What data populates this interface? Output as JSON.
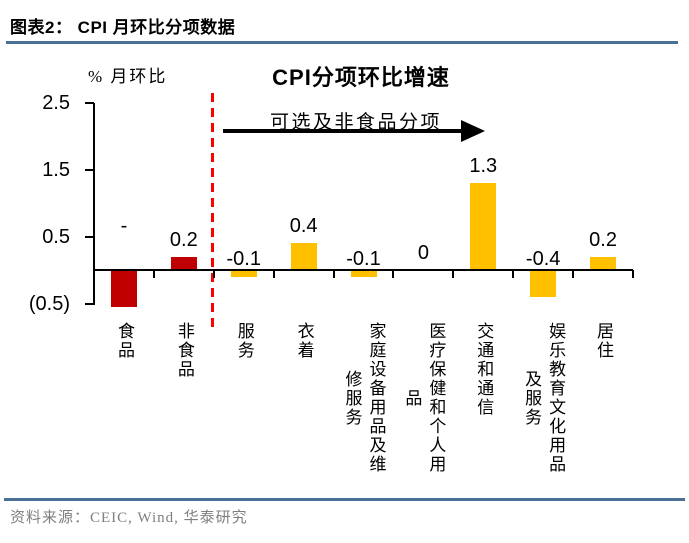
{
  "header": {
    "title": "图表2：  CPI 月环比分项数据"
  },
  "footer": {
    "source": "资料来源：CEIC, Wind,  华泰研究"
  },
  "colors": {
    "food_bar": "#C00000",
    "component_bar": "#FFC000",
    "divider_line": "#FF0000",
    "rule_line": "#4a7096",
    "source_text": "#7f7f7f",
    "axis": "#000000"
  },
  "chart_data": {
    "type": "bar",
    "title": "CPI分项环比增速",
    "ylabel": "% 月环比",
    "ylim": [
      -0.5,
      2.5
    ],
    "yticks": [
      {
        "value": 2.5,
        "label": "2.5"
      },
      {
        "value": 1.5,
        "label": "1.5"
      },
      {
        "value": 0.5,
        "label": "0.5"
      },
      {
        "value": -0.5,
        "label": "(0.5)"
      }
    ],
    "grid": false,
    "legend": false,
    "annotation": {
      "text": "可选及非食品分项",
      "shape": "right-arrow",
      "note": "red dashed divider separates 食品/非食品 aggregates from component items"
    },
    "categories": [
      "食品",
      "非食品",
      "服务",
      "衣着",
      "家庭设备用品及维修服务",
      "医疗保健和个人用品",
      "交通和通信",
      "娱乐教育文化用品及服务",
      "居住"
    ],
    "points": [
      {
        "category": "食品",
        "label": "-",
        "value": null,
        "bar_drawn_to": -0.55,
        "label_at": 0.5,
        "color": "#C00000",
        "wrapped": "食品"
      },
      {
        "category": "非食品",
        "label": "0.2",
        "value": 0.2,
        "color": "#C00000",
        "wrapped": "非食品"
      },
      {
        "category": "服务",
        "label": "-0.1",
        "value": -0.1,
        "color": "#FFC000",
        "wrapped": "服务"
      },
      {
        "category": "衣着",
        "label": "0.4",
        "value": 0.4,
        "color": "#FFC000",
        "wrapped": "衣着"
      },
      {
        "category": "家庭设备用品及维修服务",
        "label": "-0.1",
        "value": -0.1,
        "color": "#FFC000",
        "wrapped": "家庭设备用品及维\n修服务"
      },
      {
        "category": "医疗保健和个人用品",
        "label": "0",
        "value": 0,
        "color": "#FFC000",
        "wrapped": "医疗保健和个人用\n品"
      },
      {
        "category": "交通和通信",
        "label": "1.3",
        "value": 1.3,
        "color": "#FFC000",
        "wrapped": "交通和通信"
      },
      {
        "category": "娱乐教育文化用品及服务",
        "label": "-0.4",
        "value": -0.4,
        "color": "#FFC000",
        "wrapped": "娱乐教育文化用品\n及服务"
      },
      {
        "category": "居住",
        "label": "0.2",
        "value": 0.2,
        "color": "#FFC000",
        "wrapped": "居住"
      }
    ]
  }
}
